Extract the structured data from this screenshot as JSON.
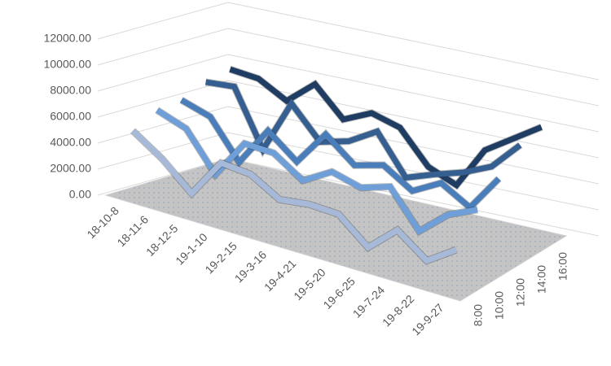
{
  "chart_data": {
    "type": "line",
    "categories": [
      "18-10-8",
      "18-11-6",
      "18-12-5",
      "19-1-10",
      "19-2-15",
      "19-3-16",
      "19-4-21",
      "19-5-20",
      "19-6-25",
      "19-7-24",
      "19-8-22",
      "19-9-27"
    ],
    "series": [
      {
        "name": "8:00",
        "color": "#a7b9d8",
        "values": [
          5000,
          3500,
          1500,
          4500,
          4300,
          3000,
          3300,
          3200,
          1300,
          3300,
          1600,
          3100
        ]
      },
      {
        "name": "10:00",
        "color": "#6f9fd8",
        "values": [
          6000,
          5200,
          2300,
          5300,
          5200,
          3700,
          5000,
          4400,
          5100,
          2300,
          4200,
          5200
        ]
      },
      {
        "name": "12:00",
        "color": "#4a7ebb",
        "values": [
          6200,
          5500,
          2600,
          5600,
          3800,
          6500,
          4700,
          5300,
          3900,
          5100,
          3800,
          6600
        ]
      },
      {
        "name": "14:00",
        "color": "#355f91",
        "values": [
          7000,
          7200,
          2900,
          7000,
          4600,
          5200,
          6500,
          3500,
          4300,
          5000,
          6000,
          8200
        ]
      },
      {
        "name": "16:00",
        "color": "#1f3c63",
        "values": [
          7400,
          7200,
          6000,
          7800,
          5600,
          6600,
          6000,
          3500,
          2600,
          5800,
          7200,
          8600
        ]
      }
    ],
    "ylim": [
      0,
      12000
    ],
    "yticks": [
      {
        "value": 0,
        "label": "0.00"
      },
      {
        "value": 2000,
        "label": "2000.00"
      },
      {
        "value": 4000,
        "label": "4000.00"
      },
      {
        "value": 6000,
        "label": "6000.00"
      },
      {
        "value": 8000,
        "label": "8000.00"
      },
      {
        "value": 10000,
        "label": "10000.00"
      },
      {
        "value": 12000,
        "label": "12000.00"
      }
    ],
    "grid": true
  }
}
